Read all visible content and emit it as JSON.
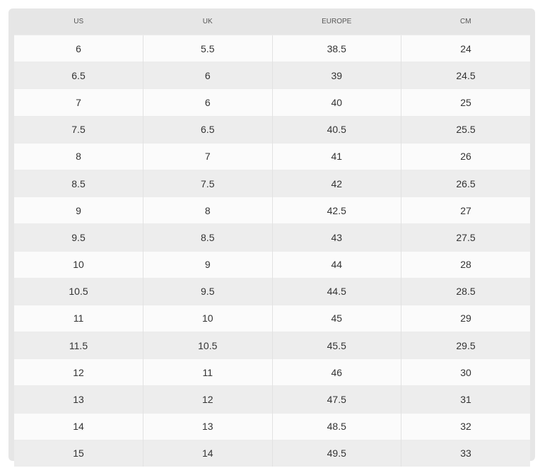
{
  "table": {
    "header": [
      "US",
      "UK",
      "EUROPE",
      "CM"
    ],
    "rows": [
      [
        "6",
        "5.5",
        "38.5",
        "24"
      ],
      [
        "6.5",
        "6",
        "39",
        "24.5"
      ],
      [
        "7",
        "6",
        "40",
        "25"
      ],
      [
        "7.5",
        "6.5",
        "40.5",
        "25.5"
      ],
      [
        "8",
        "7",
        "41",
        "26"
      ],
      [
        "8.5",
        "7.5",
        "42",
        "26.5"
      ],
      [
        "9",
        "8",
        "42.5",
        "27"
      ],
      [
        "9.5",
        "8.5",
        "43",
        "27.5"
      ],
      [
        "10",
        "9",
        "44",
        "28"
      ],
      [
        "10.5",
        "9.5",
        "44.5",
        "28.5"
      ],
      [
        "11",
        "10",
        "45",
        "29"
      ],
      [
        "11.5",
        "10.5",
        "45.5",
        "29.5"
      ],
      [
        "12",
        "11",
        "46",
        "30"
      ],
      [
        "13",
        "12",
        "47.5",
        "31"
      ],
      [
        "14",
        "13",
        "48.5",
        "32"
      ],
      [
        "15",
        "14",
        "49.5",
        "33"
      ]
    ]
  }
}
